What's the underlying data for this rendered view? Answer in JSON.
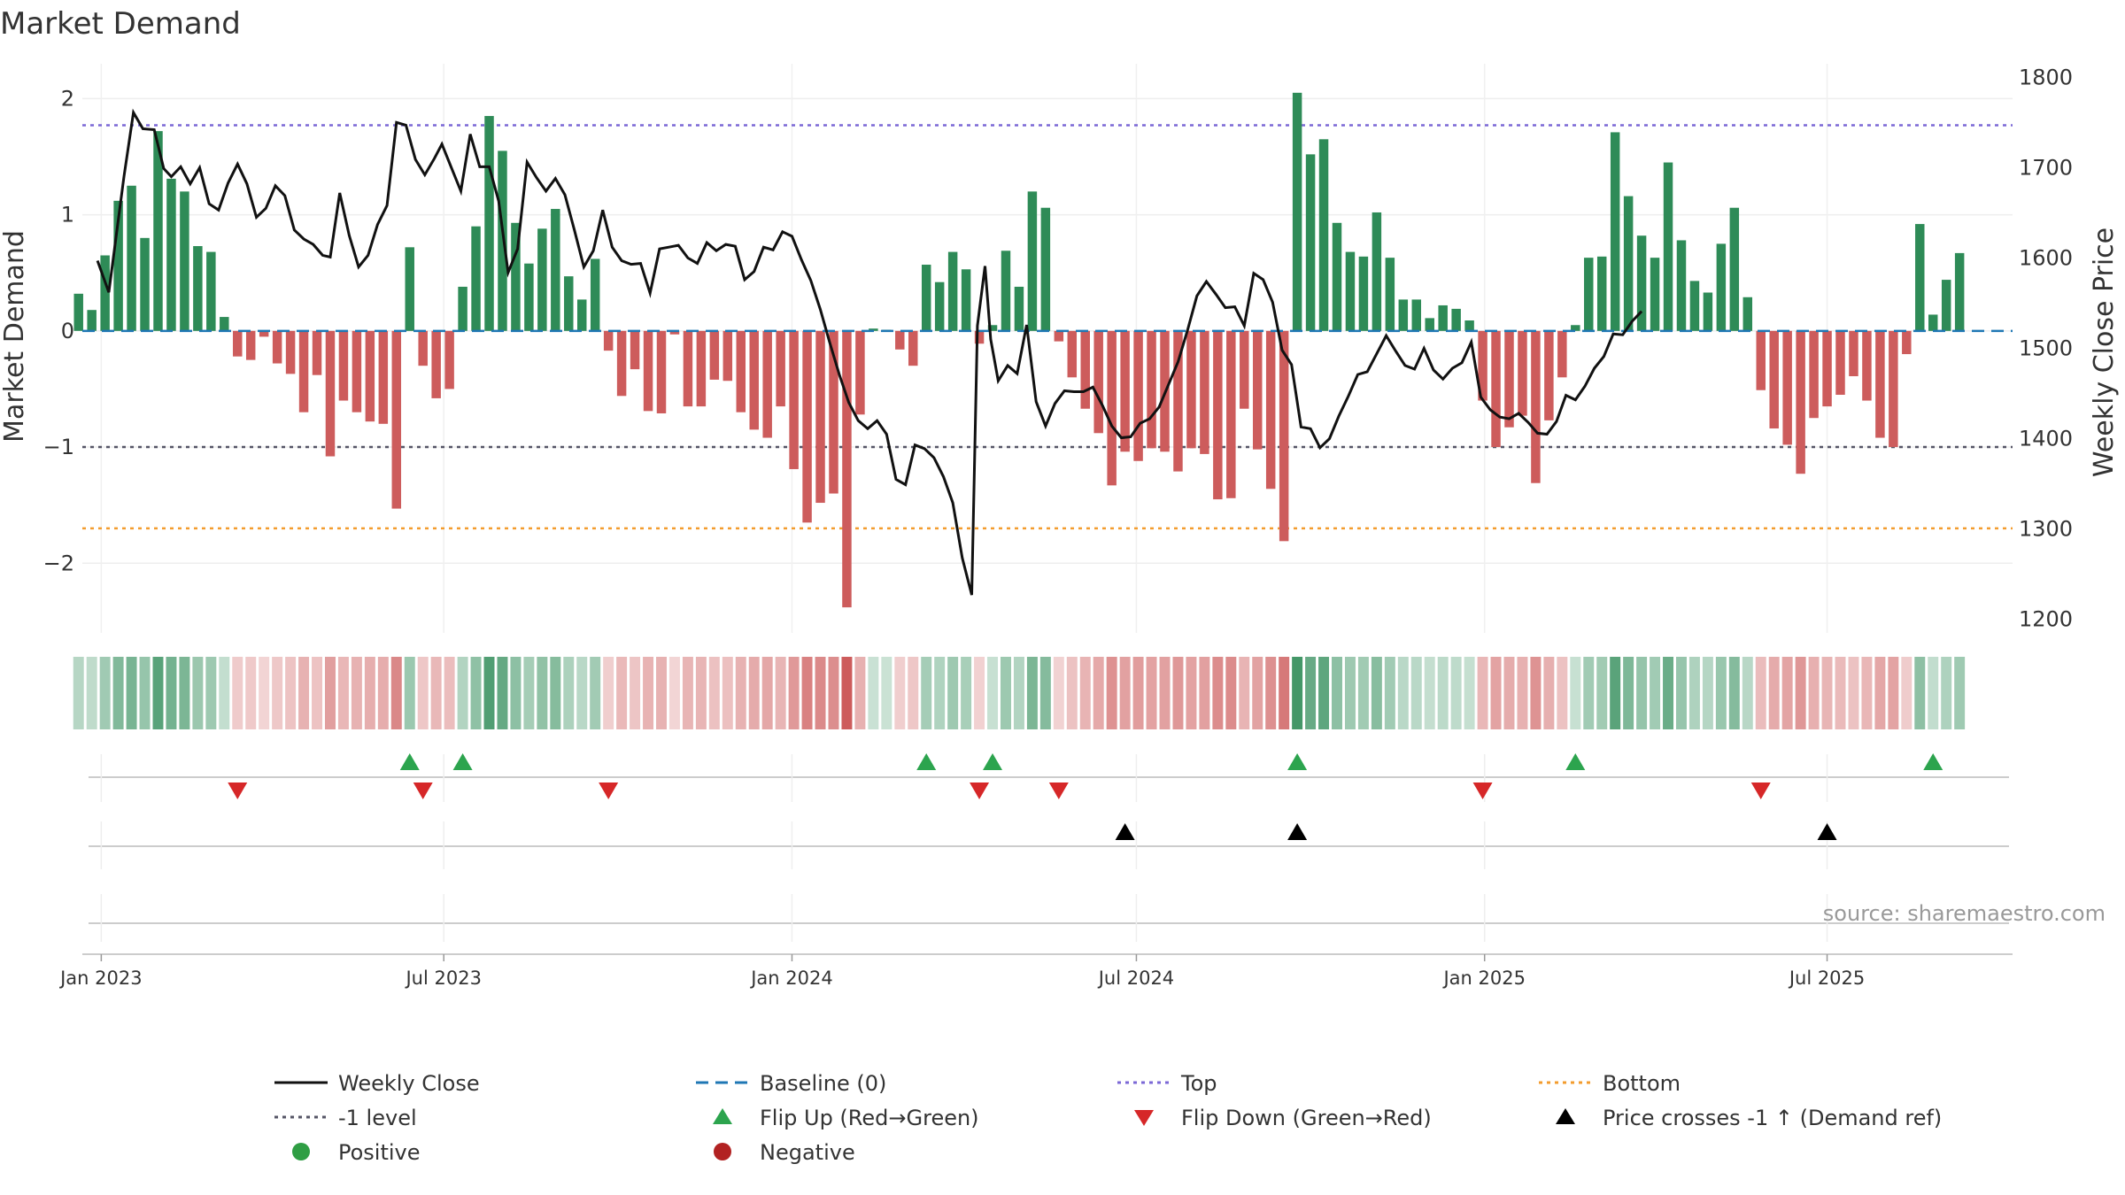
{
  "chart_data": {
    "type": "bar",
    "title": "Market Demand",
    "ylabel": "Market Demand",
    "y2label": "Weekly Close Price",
    "ylim": [
      -2.6,
      2.3
    ],
    "y2lim": [
      1185,
      1815
    ],
    "yticks": [
      2,
      1,
      0,
      -1,
      -2
    ],
    "ytick_labels": [
      "2",
      "1",
      "0",
      "−1",
      "−2"
    ],
    "y2ticks": [
      1800,
      1700,
      1600,
      1500,
      1400,
      1300,
      1200
    ],
    "y2tick_labels": [
      "1800",
      "1700",
      "1600",
      "1500",
      "1400",
      "1300",
      "1200"
    ],
    "x_range_days": [
      -10,
      1010
    ],
    "x_ticks": [
      {
        "label": "Jan 2023",
        "day": 0
      },
      {
        "label": "Jul 2023",
        "day": 181
      },
      {
        "label": "Jan 2024",
        "day": 365
      },
      {
        "label": "Jul 2024",
        "day": 547
      },
      {
        "label": "Jan 2025",
        "day": 731
      },
      {
        "label": "Jul 2025",
        "day": 912
      }
    ],
    "first_week_day": -12,
    "week_days": 7,
    "demand": [
      0.32,
      0.18,
      0.65,
      1.12,
      1.25,
      0.8,
      1.72,
      1.31,
      1.2,
      0.73,
      0.68,
      0.12,
      -0.22,
      -0.25,
      -0.05,
      -0.28,
      -0.37,
      -0.7,
      -0.38,
      -1.08,
      -0.6,
      -0.7,
      -0.78,
      -0.8,
      -1.53,
      0.72,
      -0.3,
      -0.58,
      -0.5,
      0.38,
      0.9,
      1.85,
      1.55,
      0.93,
      0.58,
      0.88,
      1.05,
      0.47,
      0.27,
      0.62,
      -0.17,
      -0.56,
      -0.33,
      -0.69,
      -0.71,
      -0.03,
      -0.65,
      -0.65,
      -0.42,
      -0.43,
      -0.7,
      -0.85,
      -0.92,
      -0.65,
      -1.19,
      -1.65,
      -1.48,
      -1.4,
      -2.38,
      -0.72,
      0.02,
      0.01,
      -0.16,
      -0.3,
      0.57,
      0.42,
      0.68,
      0.53,
      -0.11,
      0.05,
      0.69,
      0.38,
      1.2,
      1.06,
      -0.09,
      -0.4,
      -0.67,
      -0.88,
      -1.33,
      -1.04,
      -1.12,
      -1.01,
      -1.04,
      -1.21,
      -1.01,
      -1.06,
      -1.45,
      -1.44,
      -0.67,
      -1.02,
      -1.36,
      -1.81,
      2.05,
      1.52,
      1.65,
      0.93,
      0.68,
      0.64,
      1.02,
      0.63,
      0.27,
      0.27,
      0.11,
      0.22,
      0.19,
      0.09,
      -0.6,
      -1.0,
      -0.83,
      -0.73,
      -1.31,
      -0.77,
      -0.4,
      0.05,
      0.63,
      0.64,
      1.71,
      1.16,
      0.82,
      0.63,
      1.45,
      0.78,
      0.43,
      0.33,
      0.75,
      1.06,
      0.29,
      -0.51,
      -0.84,
      -0.98,
      -1.23,
      -0.75,
      -0.65,
      -0.55,
      -0.39,
      -0.6,
      -0.92,
      -1.0,
      -0.2,
      0.92,
      0.14,
      0.44,
      0.67
    ],
    "price_points": [
      [
        -2,
        1597
      ],
      [
        4,
        1562
      ],
      [
        12,
        1690
      ],
      [
        17,
        1761
      ],
      [
        22,
        1743
      ],
      [
        28,
        1742
      ],
      [
        33,
        1699
      ],
      [
        37,
        1690
      ],
      [
        42,
        1701
      ],
      [
        47,
        1682
      ],
      [
        52,
        1700
      ],
      [
        57,
        1660
      ],
      [
        62,
        1653
      ],
      [
        67,
        1683
      ],
      [
        72,
        1704
      ],
      [
        77,
        1682
      ],
      [
        82,
        1645
      ],
      [
        87,
        1655
      ],
      [
        92,
        1680
      ],
      [
        97,
        1669
      ],
      [
        102,
        1631
      ],
      [
        107,
        1621
      ],
      [
        112,
        1615
      ],
      [
        117,
        1603
      ],
      [
        121,
        1601
      ],
      [
        126,
        1672
      ],
      [
        131,
        1625
      ],
      [
        136,
        1590
      ],
      [
        141,
        1603
      ],
      [
        146,
        1637
      ],
      [
        151,
        1658
      ],
      [
        156,
        1750
      ],
      [
        161,
        1747
      ],
      [
        166,
        1709
      ],
      [
        171,
        1692
      ],
      [
        176,
        1710
      ],
      [
        180,
        1726
      ],
      [
        185,
        1700
      ],
      [
        190,
        1674
      ],
      [
        195,
        1737
      ],
      [
        200,
        1701
      ],
      [
        205,
        1701
      ],
      [
        210,
        1663
      ],
      [
        215,
        1584
      ],
      [
        220,
        1610
      ],
      [
        225,
        1706
      ],
      [
        230,
        1689
      ],
      [
        235,
        1674
      ],
      [
        240,
        1688
      ],
      [
        245,
        1670
      ],
      [
        250,
        1631
      ],
      [
        255,
        1590
      ],
      [
        260,
        1608
      ],
      [
        265,
        1653
      ],
      [
        270,
        1612
      ],
      [
        275,
        1597
      ],
      [
        280,
        1593
      ],
      [
        285,
        1594
      ],
      [
        290,
        1561
      ],
      [
        295,
        1610
      ],
      [
        300,
        1612
      ],
      [
        305,
        1614
      ],
      [
        310,
        1600
      ],
      [
        315,
        1594
      ],
      [
        320,
        1617
      ],
      [
        325,
        1608
      ],
      [
        330,
        1615
      ],
      [
        335,
        1613
      ],
      [
        340,
        1576
      ],
      [
        345,
        1585
      ],
      [
        350,
        1612
      ],
      [
        355,
        1609
      ],
      [
        360,
        1629
      ],
      [
        365,
        1624
      ],
      [
        370,
        1598
      ],
      [
        375,
        1575
      ],
      [
        380,
        1543
      ],
      [
        385,
        1506
      ],
      [
        390,
        1471
      ],
      [
        395,
        1440
      ],
      [
        400,
        1420
      ],
      [
        405,
        1411
      ],
      [
        410,
        1420
      ],
      [
        415,
        1405
      ],
      [
        420,
        1355
      ],
      [
        425,
        1349
      ],
      [
        430,
        1393
      ],
      [
        435,
        1389
      ],
      [
        440,
        1379
      ],
      [
        445,
        1358
      ],
      [
        450,
        1329
      ],
      [
        455,
        1268
      ],
      [
        460,
        1227
      ],
      [
        463,
        1525
      ],
      [
        467,
        1591
      ],
      [
        470,
        1510
      ],
      [
        474,
        1464
      ],
      [
        479,
        1481
      ],
      [
        484,
        1472
      ],
      [
        489,
        1526
      ],
      [
        494,
        1441
      ],
      [
        499,
        1414
      ],
      [
        504,
        1439
      ],
      [
        509,
        1453
      ],
      [
        514,
        1452
      ],
      [
        519,
        1452
      ],
      [
        524,
        1457
      ],
      [
        529,
        1437
      ],
      [
        534,
        1414
      ],
      [
        539,
        1401
      ],
      [
        544,
        1402
      ],
      [
        549,
        1417
      ],
      [
        554,
        1422
      ],
      [
        559,
        1435
      ],
      [
        564,
        1460
      ],
      [
        569,
        1485
      ],
      [
        574,
        1520
      ],
      [
        579,
        1558
      ],
      [
        584,
        1574
      ],
      [
        589,
        1560
      ],
      [
        594,
        1545
      ],
      [
        599,
        1546
      ],
      [
        604,
        1525
      ],
      [
        609,
        1583
      ],
      [
        614,
        1576
      ],
      [
        619,
        1551
      ],
      [
        624,
        1498
      ],
      [
        629,
        1482
      ],
      [
        634,
        1413
      ],
      [
        639,
        1411
      ],
      [
        644,
        1390
      ],
      [
        649,
        1400
      ],
      [
        654,
        1425
      ],
      [
        659,
        1447
      ],
      [
        664,
        1471
      ],
      [
        669,
        1474
      ],
      [
        674,
        1494
      ],
      [
        679,
        1514
      ],
      [
        684,
        1497
      ],
      [
        689,
        1481
      ],
      [
        694,
        1477
      ],
      [
        699,
        1500
      ],
      [
        704,
        1476
      ],
      [
        709,
        1466
      ],
      [
        714,
        1478
      ],
      [
        719,
        1484
      ],
      [
        724,
        1507
      ],
      [
        729,
        1446
      ],
      [
        734,
        1432
      ],
      [
        739,
        1424
      ],
      [
        744,
        1422
      ],
      [
        749,
        1428
      ],
      [
        754,
        1418
      ],
      [
        759,
        1406
      ],
      [
        764,
        1405
      ],
      [
        769,
        1419
      ],
      [
        774,
        1448
      ],
      [
        779,
        1443
      ],
      [
        784,
        1458
      ],
      [
        789,
        1478
      ],
      [
        794,
        1491
      ],
      [
        799,
        1516
      ],
      [
        804,
        1515
      ],
      [
        809,
        1530
      ],
      [
        814,
        1541
      ]
    ],
    "price_mode": "day_value",
    "series": [
      {
        "name": "Weekly Close",
        "style": "line",
        "color": "#111111"
      },
      {
        "name": "Baseline (0)",
        "style": "dashed",
        "color": "#1f77b4"
      },
      {
        "name": "Top",
        "style": "dotted",
        "color": "#7b68d6"
      },
      {
        "name": "Bottom",
        "style": "dotted",
        "color": "#f39c2e"
      },
      {
        "name": "-1 level",
        "style": "dotted",
        "color": "#555566"
      },
      {
        "name": "Flip Up (Red→Green)",
        "style": "triangle-up",
        "color": "#2ca44e"
      },
      {
        "name": "Flip Down (Green→Red)",
        "style": "triangle-down",
        "color": "#d62728"
      },
      {
        "name": "Price crosses -1 ↑ (Demand ref)",
        "style": "triangle-up",
        "color": "#000000"
      },
      {
        "name": "Positive",
        "style": "circle",
        "color": "#2f9e44"
      },
      {
        "name": "Negative",
        "style": "circle",
        "color": "#b22222"
      }
    ],
    "levels": {
      "top": 1.77,
      "bottom": -1.7,
      "minus_one": -1.0,
      "baseline": 0
    },
    "flip_up_weeks": [
      25,
      29,
      64,
      69,
      92,
      113,
      140
    ],
    "flip_down_weeks": [
      12,
      26,
      40,
      68,
      74,
      106,
      127
    ],
    "price_cross_weeks": [
      79,
      92,
      132
    ],
    "colors": {
      "positive_bar": "#2e8b57",
      "negative_bar": "#cd5c5c",
      "price": "#111111",
      "grid": "#e6e6e6"
    }
  },
  "legend": {
    "items": [
      {
        "label": "Weekly Close",
        "marker": "line"
      },
      {
        "label": "Baseline (0)",
        "marker": "dashed"
      },
      {
        "label": "Top",
        "marker": "dotted-top"
      },
      {
        "label": "Bottom",
        "marker": "dotted-bottom"
      },
      {
        "label": "-1 level",
        "marker": "dotted-minus"
      },
      {
        "label": "Flip Up (Red→Green)",
        "marker": "tri-up-green"
      },
      {
        "label": "Flip Down (Green→Red)",
        "marker": "tri-down-red"
      },
      {
        "label": "Price crosses -1 ↑ (Demand ref)",
        "marker": "tri-up-black"
      },
      {
        "label": "Positive",
        "marker": "dot-green"
      },
      {
        "label": "Negative",
        "marker": "dot-red"
      }
    ]
  },
  "source": "source: sharemaestro.com"
}
